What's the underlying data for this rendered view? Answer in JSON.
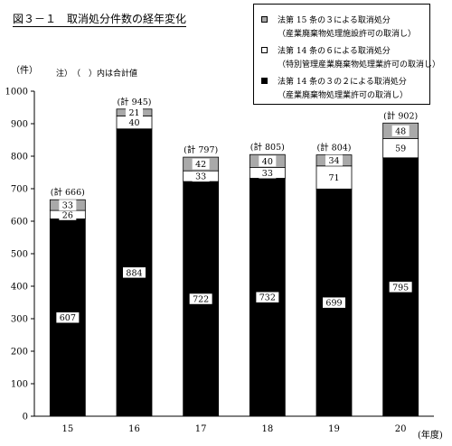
{
  "title": "図３－１　取消処分件数の経年変化",
  "unit_label": "（件）",
  "note": "注）　（　）内は合計値",
  "x_unit_label": "(年度)",
  "legend": [
    {
      "label": "法第 15 条の３による取消処分",
      "sub": "（産業廃棄物処理施設許可の取消し）",
      "color": "#a9a9a9"
    },
    {
      "label": "法第 14 条の６による取消処分",
      "sub": "（特別管理産業廃棄物処理業許可の取消し）",
      "color": "#ffffff"
    },
    {
      "label": "法第 14 条の３の２による取消処分",
      "sub": "（産業廃棄物処理業許可の取消し）",
      "color": "#000000"
    }
  ],
  "chart_data": {
    "type": "bar",
    "stacked": true,
    "categories": [
      "15",
      "16",
      "17",
      "18",
      "19",
      "20"
    ],
    "series": [
      {
        "name": "法第 14 条の３の２による取消処分",
        "color": "#000000",
        "values": [
          607,
          884,
          722,
          732,
          699,
          795
        ]
      },
      {
        "name": "法第 14 条の６による取消処分",
        "color": "#ffffff",
        "values": [
          26,
          40,
          33,
          33,
          71,
          59
        ]
      },
      {
        "name": "法第 15 条の３による取消処分",
        "color": "#a9a9a9",
        "values": [
          33,
          21,
          42,
          40,
          34,
          48
        ]
      }
    ],
    "totals": [
      "(計 666)",
      "(計 945)",
      "(計 797)",
      "(計 805)",
      "(計 804)",
      "(計 902)"
    ],
    "yticks": [
      0,
      100,
      200,
      300,
      400,
      500,
      600,
      700,
      800,
      900,
      1000
    ],
    "ylim": [
      0,
      1000
    ],
    "grid": false,
    "legend_position": "top-right"
  }
}
